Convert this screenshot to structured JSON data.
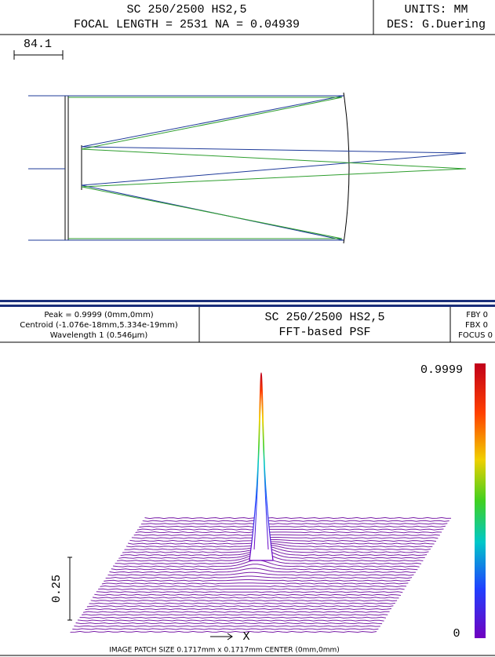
{
  "layout_header": {
    "title": "SC 250/2500 HS2,5",
    "subtitle": "FOCAL LENGTH = 2531  NA = 0.04939",
    "units": "UNITS: MM",
    "designer": "DES: G.Duering"
  },
  "layout": {
    "scale_bar": "84.1"
  },
  "psf_header": {
    "peak": "Peak = 0.9999 (0mm,0mm)",
    "centroid": "Centroid (-1.076e-18mm,5.334e-19mm)",
    "wavelength": "Wavelength 1 (0.546µm)",
    "title": "SC 250/2500 HS2,5",
    "subtitle": "FFT-based PSF",
    "fby": "FBY 0",
    "fbx": "FBX 0",
    "focus": "FOCUS 0"
  },
  "psf_plot": {
    "colorbar_max": 0.9999,
    "colorbar_min": 0,
    "z_scale": 0.25,
    "x_axis": "X",
    "footer": "IMAGE PATCH SIZE 0.1717mm x 0.1717mm    CENTER (0mm,0mm)"
  }
}
